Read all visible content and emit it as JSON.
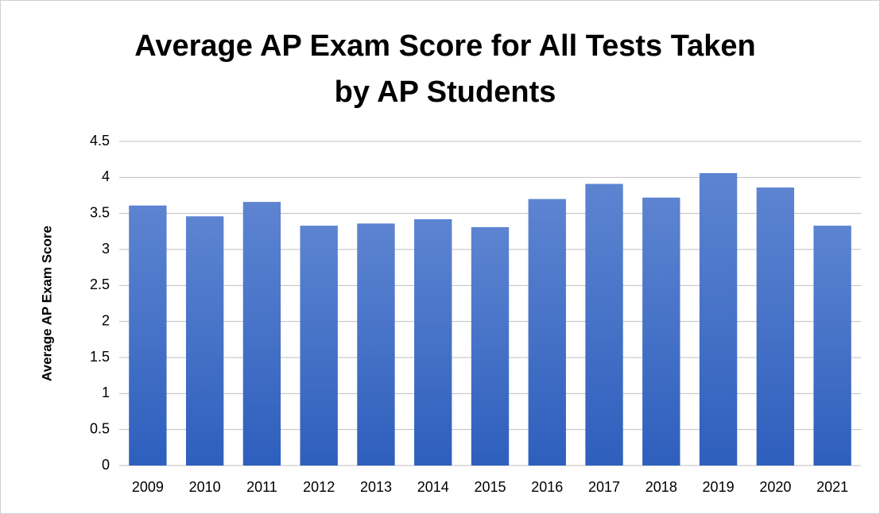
{
  "chart_data": {
    "type": "bar",
    "title": [
      "Average AP Exam Score for All Tests Taken",
      "by AP Students"
    ],
    "y_label": "Average AP Exam Score",
    "categories": [
      "2009",
      "2010",
      "2011",
      "2012",
      "2013",
      "2014",
      "2015",
      "2016",
      "2017",
      "2018",
      "2019",
      "2020",
      "2021"
    ],
    "values": [
      3.61,
      3.46,
      3.66,
      3.33,
      3.36,
      3.42,
      3.31,
      3.7,
      3.91,
      3.72,
      4.06,
      3.86,
      3.33
    ],
    "color": "#4472c4",
    "ylim": [
      0,
      4.5
    ],
    "yticks": [
      0,
      0.5,
      1,
      1.5,
      2,
      2.5,
      3,
      3.5,
      4,
      4.5
    ],
    "grid": true
  }
}
